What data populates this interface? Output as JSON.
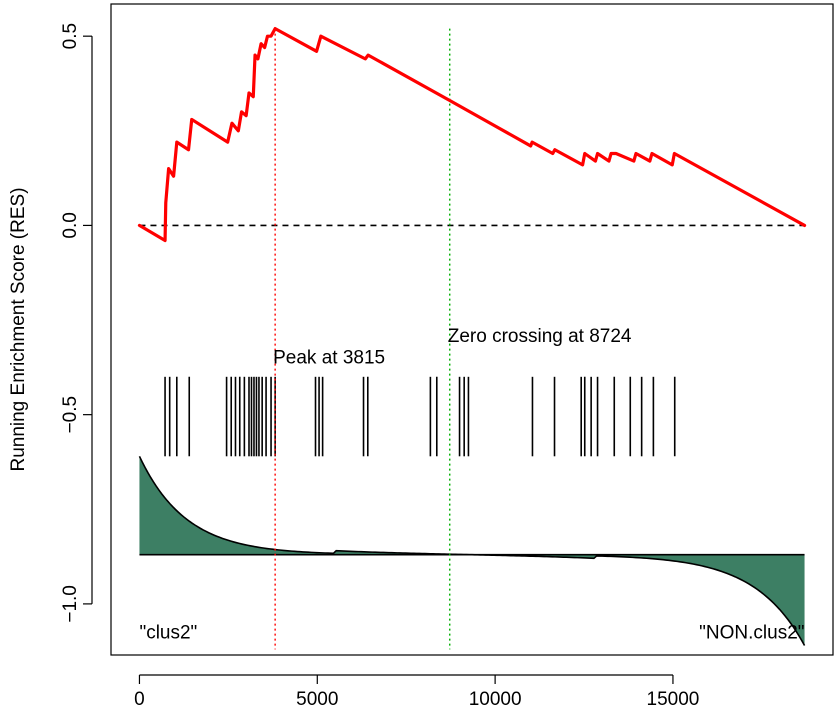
{
  "chart_data": {
    "type": "line",
    "title": "",
    "xlabel": "",
    "ylabel": "Running Enrichment Score (RES)",
    "xlim": [
      -800,
      19500
    ],
    "ylim": [
      -1.135,
      0.585
    ],
    "x_ticks": [
      0,
      5000,
      10000,
      15000
    ],
    "x_tick_labels": [
      "0",
      "5000",
      "10000",
      "15000"
    ],
    "y_ticks": [
      0.5,
      0.0,
      -0.5,
      -1.0
    ],
    "y_tick_labels": [
      "0.5",
      "0.0",
      "−0.5",
      "−1.0"
    ],
    "grid": false,
    "legend": "none",
    "n_genes": 18700,
    "colors": {
      "res_line": "#ff0000",
      "peak_line": "#ff0000",
      "zero_cross_line": "#00b000",
      "baseline": "#000000",
      "ranked_fill": "#3d7f64",
      "hits": "#000000"
    },
    "series": [
      {
        "values": [
          [
            0,
            0.0
          ],
          [
            720,
            -0.04
          ],
          [
            740,
            0.06
          ],
          [
            820,
            0.15
          ],
          [
            960,
            0.13
          ],
          [
            1050,
            0.22
          ],
          [
            1380,
            0.2
          ],
          [
            1470,
            0.28
          ],
          [
            2480,
            0.22
          ],
          [
            2600,
            0.27
          ],
          [
            2780,
            0.25
          ],
          [
            2870,
            0.3
          ],
          [
            3000,
            0.29
          ],
          [
            3080,
            0.35
          ],
          [
            3200,
            0.34
          ],
          [
            3250,
            0.45
          ],
          [
            3330,
            0.44
          ],
          [
            3420,
            0.48
          ],
          [
            3520,
            0.47
          ],
          [
            3600,
            0.5
          ],
          [
            3700,
            0.5
          ],
          [
            3815,
            0.52
          ],
          [
            4980,
            0.46
          ],
          [
            5100,
            0.5
          ],
          [
            6350,
            0.44
          ],
          [
            6430,
            0.45
          ],
          [
            8724,
            0.33
          ],
          [
            11000,
            0.21
          ],
          [
            11040,
            0.22
          ],
          [
            11620,
            0.19
          ],
          [
            11680,
            0.2
          ],
          [
            12460,
            0.16
          ],
          [
            12520,
            0.19
          ],
          [
            12820,
            0.17
          ],
          [
            12880,
            0.19
          ],
          [
            13200,
            0.17
          ],
          [
            13260,
            0.19
          ],
          [
            13400,
            0.19
          ],
          [
            13900,
            0.17
          ],
          [
            13960,
            0.19
          ],
          [
            14350,
            0.17
          ],
          [
            14410,
            0.19
          ],
          [
            14980,
            0.16
          ],
          [
            15040,
            0.19
          ],
          [
            18700,
            0.0
          ]
        ]
      }
    ],
    "hits": [
      720,
      850,
      1050,
      1400,
      2450,
      2580,
      2700,
      2820,
      2950,
      3080,
      3150,
      3220,
      3290,
      3360,
      3450,
      3560,
      3700,
      3815,
      4950,
      5050,
      5150,
      6300,
      6420,
      8180,
      8360,
      9000,
      9130,
      9250,
      11050,
      11670,
      12420,
      12520,
      12700,
      12880,
      13350,
      13800,
      14120,
      14450,
      15050
    ],
    "ranked_metric": {
      "baseline": -0.87,
      "start": -0.61,
      "end": -1.11
    },
    "annotations": {
      "peak": {
        "x": 3815,
        "label": "Peak at 3815"
      },
      "zero_crossing": {
        "x": 8724,
        "label": "Zero crossing at 8724"
      }
    },
    "group_labels": {
      "left": "\"clus2\"",
      "right": "\"NON.clus2\""
    }
  }
}
